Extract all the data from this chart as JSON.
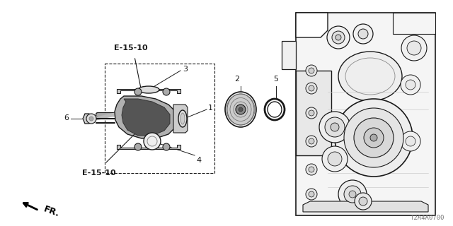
{
  "background_color": "#ffffff",
  "line_color": "#1a1a1a",
  "part_id": "T2A4A0700",
  "label_e1510_top": "E-15-10",
  "label_e1510_bot": "E-15-10",
  "fr_label": "FR.",
  "nums": [
    "1",
    "2",
    "3",
    "4",
    "5",
    "6"
  ],
  "figsize": [
    6.4,
    3.2
  ],
  "dpi": 100
}
